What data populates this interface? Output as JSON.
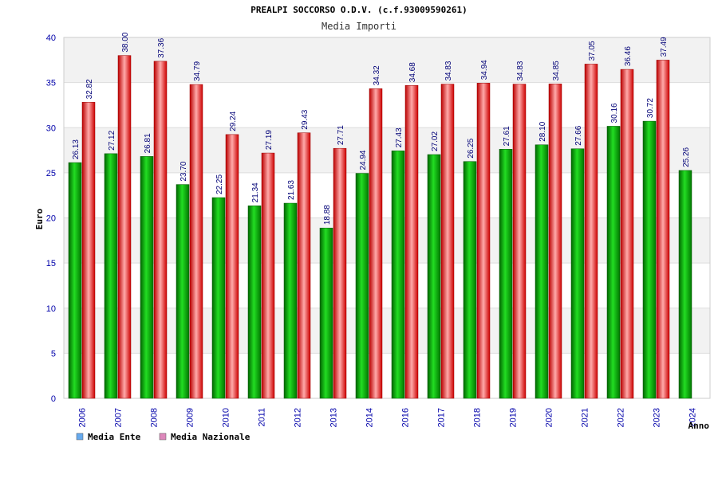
{
  "chart_data": {
    "type": "bar",
    "title": "PREALPI SOCCORSO O.D.V. (c.f.93009590261)",
    "subtitle": "Media Importi",
    "xlabel": "Anno",
    "ylabel": "Euro",
    "ylim": [
      0,
      40
    ],
    "yticks": [
      0,
      5,
      10,
      15,
      20,
      25,
      30,
      35,
      40
    ],
    "grid": true,
    "legend_position": "bottom-left",
    "categories": [
      "2006",
      "2007",
      "2008",
      "2009",
      "2010",
      "2011",
      "2012",
      "2013",
      "2014",
      "2016",
      "2017",
      "2018",
      "2019",
      "2020",
      "2021",
      "2022",
      "2023",
      "2024"
    ],
    "series": [
      {
        "name": "Media Ente",
        "color": "#00aa00",
        "legend_color": "#66aaee",
        "values": [
          26.13,
          27.12,
          26.81,
          23.7,
          22.25,
          21.34,
          21.63,
          18.88,
          24.94,
          27.43,
          27.02,
          26.25,
          27.61,
          28.1,
          27.66,
          30.16,
          30.72,
          25.26
        ],
        "labels": [
          "26.13",
          "27.12",
          "26.81",
          "23.70",
          "22.25",
          "21.34",
          "21.63",
          "18.88",
          "24.94",
          "27.43",
          "27.02",
          "26.25",
          "27.61",
          "28.10",
          "27.66",
          "30.16",
          "30.72",
          "25.26"
        ]
      },
      {
        "name": "Media Nazionale",
        "color": "#ee2222",
        "legend_color": "#dd88bb",
        "values": [
          32.82,
          38.0,
          37.36,
          34.79,
          29.24,
          27.19,
          29.43,
          27.71,
          34.32,
          34.68,
          34.83,
          34.94,
          34.83,
          34.85,
          37.05,
          36.46,
          37.49,
          null
        ],
        "labels": [
          "32.82",
          "38.00",
          "37.36",
          "34.79",
          "29.24",
          "27.19",
          "29.43",
          "27.71",
          "34.32",
          "34.68",
          "34.83",
          "34.94",
          "34.83",
          "34.85",
          "37.05",
          "36.46",
          "37.49",
          null
        ]
      }
    ]
  }
}
